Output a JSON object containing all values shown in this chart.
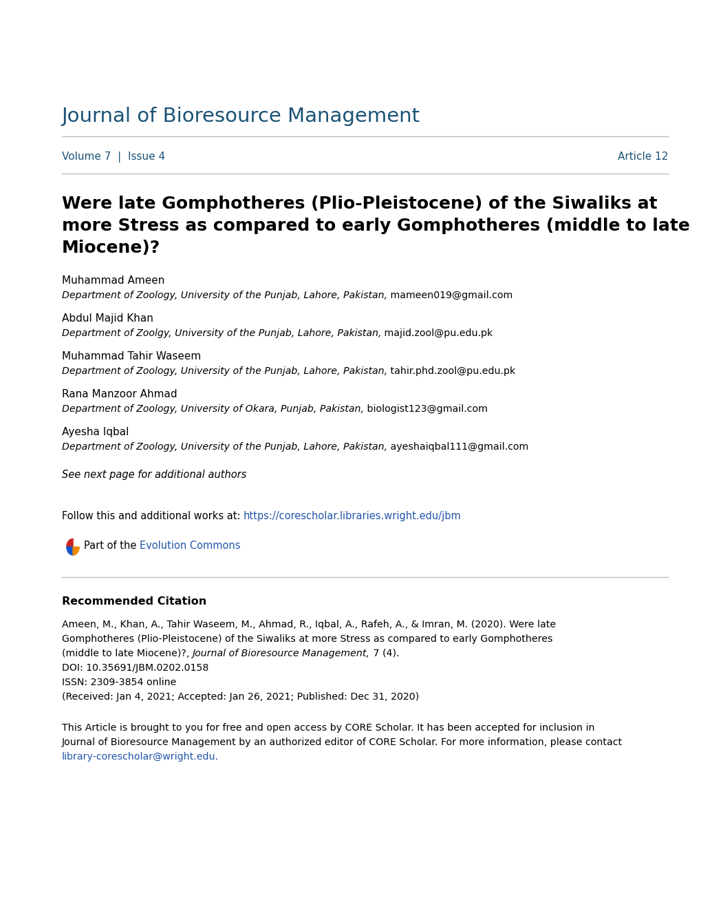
{
  "background_color": "#ffffff",
  "journal_title": "Journal of Bioresource Management",
  "journal_title_color": "#1a5276",
  "volume_issue": "Volume 7  |  Issue 4",
  "article_num": "Article 12",
  "volume_color": "#1a5276",
  "article_color": "#1a5276",
  "paper_title_line1": "Were late Gomphotheres (Plio-Pleistocene) of the Siwaliks at",
  "paper_title_line2": "more Stress as compared to early Gomphotheres (middle to late",
  "paper_title_line3": "Miocene)?",
  "paper_title_color": "#000000",
  "authors": [
    {
      "name": "Muhammad Ameen",
      "dept": "Department of Zoology, University of the Punjab, Lahore, Pakistan,",
      "email": " mameen019@gmail.com"
    },
    {
      "name": "Abdul Majid Khan",
      "dept": "Department of Zoolgy, University of the Punjab, Lahore, Pakistan,",
      "email": " majid.zool@pu.edu.pk"
    },
    {
      "name": "Muhammad Tahir Waseem",
      "dept": "Department of Zoology, University of the Punjab, Lahore, Pakistan,",
      "email": " tahir.phd.zool@pu.edu.pk"
    },
    {
      "name": "Rana Manzoor Ahmad",
      "dept": "Department of Zoology, University of Okara, Punjab, Pakistan,",
      "email": " biologist123@gmail.com"
    },
    {
      "name": "Ayesha Iqbal",
      "dept": "Department of Zoology, University of the Punjab, Lahore, Pakistan,",
      "email": " ayeshaiqbal111@gmail.com"
    }
  ],
  "see_next_page": "See next page for additional authors",
  "follow_text": "Follow this and additional works at: ",
  "follow_link": "https://corescholar.libraries.wright.edu/jbm",
  "part_of_text": "Part of the ",
  "evolution_link": "Evolution Commons",
  "divider_color": "#bbbbbb",
  "recommended_citation_title": "Recommended Citation",
  "citation_line1": "Ameen, M., Khan, A., Tahir Waseem, M., Ahmad, R., Iqbal, A., Rafeh, A., & Imran, M. (2020). Were late",
  "citation_line2": "Gomphotheres (Plio-Pleistocene) of the Siwaliks at more Stress as compared to early Gomphotheres",
  "citation_line3_plain": "(middle to late Miocene)?, ",
  "citation_line3_italic": "Journal of Bioresource Management,",
  "citation_line3_end": " 7 (4).",
  "citation_doi": "DOI: 10.35691/JBM.0202.0158",
  "citation_issn": "ISSN: 2309-3854 online",
  "citation_received": "(Received: Jan 4, 2021; Accepted: Jan 26, 2021; Published: Dec 31, 2020)",
  "open_access_line1": "This Article is brought to you for free and open access by CORE Scholar. It has been accepted for inclusion in",
  "open_access_line2": "Journal of Bioresource Management by an authorized editor of CORE Scholar. For more information, please contact",
  "contact_link": "library-corescholar@wright.edu",
  "link_color": "#2255aa",
  "text_color": "#000000",
  "ml": 0.088,
  "mr": 0.952
}
